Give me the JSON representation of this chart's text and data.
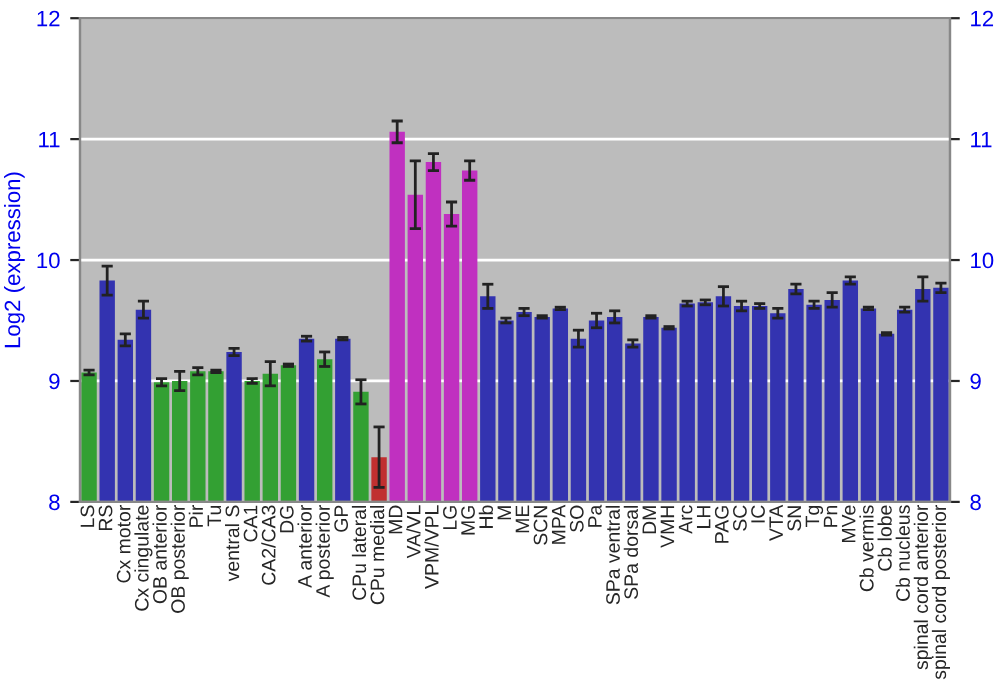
{
  "chart_data": {
    "type": "bar",
    "ylabel": "Log2 (expression)",
    "categories": [
      "LS",
      "RS",
      "Cx motor",
      "Cx cingulate",
      "OB anterior",
      "OB posterior",
      "Pir",
      "Tu",
      "ventral S",
      "CA1",
      "CA2/CA3",
      "DG",
      "A anterior",
      "A posterior",
      "GP",
      "CPu lateral",
      "CPu medial",
      "MD",
      "VA/VL",
      "VPM/VPL",
      "LG",
      "MG",
      "Hb",
      "M",
      "ME",
      "SCN",
      "MPA",
      "SO",
      "Pa",
      "SPa ventral",
      "SPa dorsal",
      "DM",
      "VMH",
      "Arc",
      "LH",
      "PAG",
      "SC",
      "IC",
      "VTA",
      "SN",
      "Tg",
      "Pn",
      "MVe",
      "Cb vermis",
      "Cb lobe",
      "Cb nucleus",
      "spinal cord anterior",
      "spinal cord posterior"
    ],
    "values": [
      9.07,
      9.83,
      9.34,
      9.59,
      8.99,
      9.0,
      9.08,
      9.08,
      9.24,
      9.0,
      9.06,
      9.13,
      9.35,
      9.18,
      9.35,
      8.91,
      8.37,
      11.06,
      10.54,
      10.81,
      10.38,
      10.74,
      9.7,
      9.5,
      9.57,
      9.53,
      9.6,
      9.35,
      9.5,
      9.53,
      9.31,
      9.53,
      9.44,
      9.64,
      9.65,
      9.7,
      9.62,
      9.62,
      9.56,
      9.76,
      9.63,
      9.67,
      9.83,
      9.6,
      9.39,
      9.59,
      9.76,
      9.77
    ],
    "errors": [
      0.02,
      0.12,
      0.05,
      0.07,
      0.03,
      0.08,
      0.03,
      0.01,
      0.03,
      0.02,
      0.1,
      0.01,
      0.02,
      0.06,
      0.01,
      0.1,
      0.25,
      0.09,
      0.28,
      0.07,
      0.1,
      0.08,
      0.1,
      0.02,
      0.03,
      0.01,
      0.01,
      0.07,
      0.06,
      0.05,
      0.03,
      0.01,
      0.01,
      0.02,
      0.02,
      0.08,
      0.04,
      0.02,
      0.04,
      0.04,
      0.03,
      0.06,
      0.03,
      0.01,
      0.01,
      0.02,
      0.1,
      0.04
    ],
    "colors": [
      "#33a033",
      "#3333b0",
      "#3333b0",
      "#3333b0",
      "#33a033",
      "#33a033",
      "#33a033",
      "#33a033",
      "#3333b0",
      "#33a033",
      "#33a033",
      "#33a033",
      "#3333b0",
      "#33a033",
      "#3333b0",
      "#33a033",
      "#c03030",
      "#c030c0",
      "#c030c0",
      "#c030c0",
      "#c030c0",
      "#c030c0",
      "#3333b0",
      "#3333b0",
      "#3333b0",
      "#3333b0",
      "#3333b0",
      "#3333b0",
      "#3333b0",
      "#3333b0",
      "#3333b0",
      "#3333b0",
      "#3333b0",
      "#3333b0",
      "#3333b0",
      "#3333b0",
      "#3333b0",
      "#3333b0",
      "#3333b0",
      "#3333b0",
      "#3333b0",
      "#3333b0",
      "#3333b0",
      "#3333b0",
      "#3333b0",
      "#3333b0",
      "#3333b0",
      "#3333b0"
    ],
    "ylim": [
      8,
      12
    ],
    "yticks": [
      8,
      9,
      10,
      11,
      12
    ],
    "y2lim": [
      8,
      12
    ],
    "y2ticks": [
      8,
      9,
      10,
      11,
      12
    ],
    "grid": "y",
    "legend": false
  }
}
